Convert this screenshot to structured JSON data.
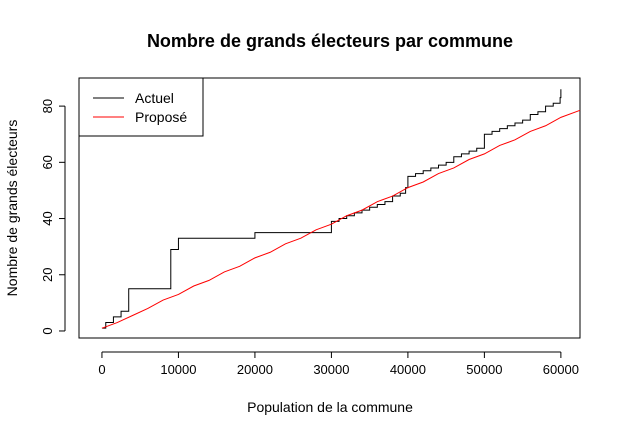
{
  "chart_data": {
    "type": "line",
    "title": "Nombre de grands électeurs par commune",
    "xlabel": "Population de la commune",
    "ylabel": "Nombre de grands électeurs",
    "xlim": [
      -3000,
      62500
    ],
    "ylim": [
      -2.5,
      90
    ],
    "xticks": [
      0,
      10000,
      20000,
      30000,
      40000,
      50000,
      60000
    ],
    "xtick_labels": [
      "0",
      "10000",
      "20000",
      "30000",
      "40000",
      "50000",
      "60000"
    ],
    "yticks": [
      0,
      20,
      40,
      60,
      80
    ],
    "ytick_labels": [
      "0",
      "20",
      "40",
      "60",
      "80"
    ],
    "grid": false,
    "legend_position": "top-left",
    "series": [
      {
        "name": "Actuel",
        "color": "#000000",
        "step": true,
        "points": [
          [
            0,
            1
          ],
          [
            500,
            3
          ],
          [
            1500,
            5
          ],
          [
            2500,
            7
          ],
          [
            3500,
            15
          ],
          [
            9000,
            29
          ],
          [
            10000,
            33
          ],
          [
            20000,
            35
          ],
          [
            30000,
            39
          ],
          [
            31000,
            40
          ],
          [
            32000,
            41
          ],
          [
            33000,
            42
          ],
          [
            34000,
            43
          ],
          [
            35000,
            44
          ],
          [
            36000,
            45
          ],
          [
            37000,
            46
          ],
          [
            38000,
            48
          ],
          [
            39000,
            49
          ],
          [
            39700,
            51
          ],
          [
            40000,
            55
          ],
          [
            41000,
            56
          ],
          [
            42000,
            57
          ],
          [
            43000,
            58
          ],
          [
            44000,
            59
          ],
          [
            45000,
            60
          ],
          [
            46000,
            62
          ],
          [
            47000,
            63
          ],
          [
            48000,
            64
          ],
          [
            49000,
            65
          ],
          [
            50000,
            70
          ],
          [
            51000,
            71
          ],
          [
            52000,
            72
          ],
          [
            53000,
            73
          ],
          [
            54000,
            74
          ],
          [
            55000,
            75
          ],
          [
            56000,
            77
          ],
          [
            57000,
            78
          ],
          [
            58000,
            80
          ],
          [
            59000,
            81
          ],
          [
            59900,
            83
          ],
          [
            60000,
            86
          ]
        ]
      },
      {
        "name": "Proposé",
        "color": "#ff0000",
        "step": false,
        "points": [
          [
            0,
            1
          ],
          [
            2000,
            3
          ],
          [
            4000,
            5.5
          ],
          [
            6000,
            8
          ],
          [
            8000,
            11
          ],
          [
            10000,
            13
          ],
          [
            12000,
            16
          ],
          [
            14000,
            18
          ],
          [
            16000,
            21
          ],
          [
            18000,
            23
          ],
          [
            20000,
            26
          ],
          [
            22000,
            28
          ],
          [
            24000,
            31
          ],
          [
            26000,
            33
          ],
          [
            28000,
            36
          ],
          [
            30000,
            38
          ],
          [
            32000,
            41
          ],
          [
            34000,
            43
          ],
          [
            36000,
            46
          ],
          [
            38000,
            48
          ],
          [
            40000,
            51
          ],
          [
            42000,
            53
          ],
          [
            44000,
            56
          ],
          [
            46000,
            58
          ],
          [
            48000,
            61
          ],
          [
            50000,
            63
          ],
          [
            52000,
            66
          ],
          [
            54000,
            68
          ],
          [
            56000,
            71
          ],
          [
            58000,
            73
          ],
          [
            60000,
            76
          ],
          [
            62500,
            78.5
          ]
        ]
      }
    ]
  }
}
